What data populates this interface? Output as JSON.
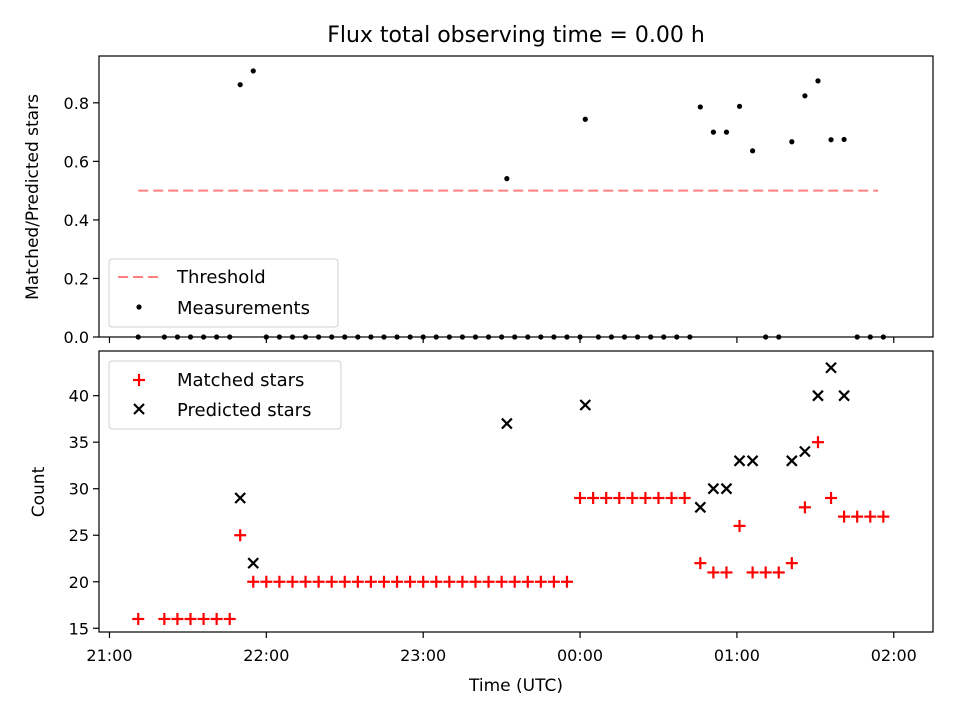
{
  "chart_data": [
    {
      "type": "scatter",
      "title": "Flux total observing time = 0.00 h",
      "xlabel": "",
      "ylabel": "Matched/Predicted stars",
      "xlim": [
        "20:56",
        "02:15"
      ],
      "ylim": [
        0,
        0.96
      ],
      "yticks": [
        0.0,
        0.2,
        0.4,
        0.6,
        0.8
      ],
      "ytick_labels": [
        "0.0",
        "0.2",
        "0.4",
        "0.6",
        "0.8"
      ],
      "grid": false,
      "legend_position": "lower-left",
      "threshold": {
        "name": "Threshold",
        "value": 0.5,
        "x_range": [
          "21:11",
          "01:54"
        ],
        "color": "#ff7f7f",
        "style": "dashed"
      },
      "series": [
        {
          "name": "Measurements",
          "color": "#000000",
          "points": [
            [
              "21:11",
              0
            ],
            [
              "21:21",
              0
            ],
            [
              "21:26",
              0
            ],
            [
              "21:31",
              0
            ],
            [
              "21:36",
              0
            ],
            [
              "21:41",
              0
            ],
            [
              "21:46",
              0
            ],
            [
              "21:50",
              0.862
            ],
            [
              "21:55",
              0.909
            ],
            [
              "22:00",
              0
            ],
            [
              "22:05",
              0
            ],
            [
              "22:10",
              0
            ],
            [
              "22:15",
              0
            ],
            [
              "22:20",
              0
            ],
            [
              "22:25",
              0
            ],
            [
              "22:30",
              0
            ],
            [
              "22:35",
              0
            ],
            [
              "22:40",
              0
            ],
            [
              "22:45",
              0
            ],
            [
              "22:50",
              0
            ],
            [
              "22:55",
              0
            ],
            [
              "23:00",
              0
            ],
            [
              "23:05",
              0
            ],
            [
              "23:10",
              0
            ],
            [
              "23:15",
              0
            ],
            [
              "23:20",
              0
            ],
            [
              "23:25",
              0
            ],
            [
              "23:30",
              0
            ],
            [
              "23:32",
              0.541
            ],
            [
              "23:35",
              0
            ],
            [
              "23:40",
              0
            ],
            [
              "23:45",
              0
            ],
            [
              "23:50",
              0
            ],
            [
              "23:55",
              0
            ],
            [
              "00:00",
              0
            ],
            [
              "00:02",
              0.744
            ],
            [
              "00:07",
              0
            ],
            [
              "00:12",
              0
            ],
            [
              "00:17",
              0
            ],
            [
              "00:22",
              0
            ],
            [
              "00:27",
              0
            ],
            [
              "00:32",
              0
            ],
            [
              "00:37",
              0
            ],
            [
              "00:42",
              0
            ],
            [
              "00:46",
              0.786
            ],
            [
              "00:51",
              0.7
            ],
            [
              "00:56",
              0.7
            ],
            [
              "01:01",
              0.788
            ],
            [
              "01:06",
              0.636
            ],
            [
              "01:11",
              0
            ],
            [
              "01:16",
              0
            ],
            [
              "01:21",
              0.667
            ],
            [
              "01:26",
              0.824
            ],
            [
              "01:31",
              0.875
            ],
            [
              "01:36",
              0.674
            ],
            [
              "01:41",
              0.675
            ],
            [
              "01:46",
              0
            ],
            [
              "01:51",
              0
            ],
            [
              "01:56",
              0
            ]
          ]
        }
      ]
    },
    {
      "type": "scatter",
      "title": "",
      "xlabel": "Time (UTC)",
      "ylabel": "Count",
      "xlim": [
        "20:56",
        "02:15"
      ],
      "ylim": [
        14.6,
        44.8
      ],
      "yticks": [
        15,
        20,
        25,
        30,
        35,
        40
      ],
      "ytick_labels": [
        "15",
        "20",
        "25",
        "30",
        "35",
        "40"
      ],
      "xticks": [
        "21:00",
        "22:00",
        "23:00",
        "00:00",
        "01:00",
        "02:00"
      ],
      "xtick_labels": [
        "21:00",
        "22:00",
        "23:00",
        "00:00",
        "01:00",
        "02:00"
      ],
      "grid": false,
      "legend_position": "upper-left",
      "series": [
        {
          "name": "Matched stars",
          "color": "#ff0000",
          "marker": "plus",
          "points": [
            [
              "21:11",
              16
            ],
            [
              "21:21",
              16
            ],
            [
              "21:26",
              16
            ],
            [
              "21:31",
              16
            ],
            [
              "21:36",
              16
            ],
            [
              "21:41",
              16
            ],
            [
              "21:46",
              16
            ],
            [
              "21:50",
              25
            ],
            [
              "21:55",
              20
            ],
            [
              "22:00",
              20
            ],
            [
              "22:05",
              20
            ],
            [
              "22:10",
              20
            ],
            [
              "22:15",
              20
            ],
            [
              "22:20",
              20
            ],
            [
              "22:25",
              20
            ],
            [
              "22:30",
              20
            ],
            [
              "22:35",
              20
            ],
            [
              "22:40",
              20
            ],
            [
              "22:45",
              20
            ],
            [
              "22:50",
              20
            ],
            [
              "22:55",
              20
            ],
            [
              "23:00",
              20
            ],
            [
              "23:05",
              20
            ],
            [
              "23:10",
              20
            ],
            [
              "23:15",
              20
            ],
            [
              "23:20",
              20
            ],
            [
              "23:25",
              20
            ],
            [
              "23:30",
              20
            ],
            [
              "23:35",
              20
            ],
            [
              "23:40",
              20
            ],
            [
              "23:45",
              20
            ],
            [
              "23:50",
              20
            ],
            [
              "23:55",
              20
            ],
            [
              "00:00",
              29
            ],
            [
              "00:05",
              29
            ],
            [
              "00:10",
              29
            ],
            [
              "00:15",
              29
            ],
            [
              "00:20",
              29
            ],
            [
              "00:25",
              29
            ],
            [
              "00:30",
              29
            ],
            [
              "00:35",
              29
            ],
            [
              "00:40",
              29
            ],
            [
              "00:46",
              22
            ],
            [
              "00:51",
              21
            ],
            [
              "00:56",
              21
            ],
            [
              "01:01",
              26
            ],
            [
              "01:06",
              21
            ],
            [
              "01:11",
              21
            ],
            [
              "01:16",
              21
            ],
            [
              "01:21",
              22
            ],
            [
              "01:26",
              28
            ],
            [
              "01:31",
              35
            ],
            [
              "01:36",
              29
            ],
            [
              "01:41",
              27
            ],
            [
              "01:46",
              27
            ],
            [
              "01:51",
              27
            ],
            [
              "01:56",
              27
            ]
          ]
        },
        {
          "name": "Predicted stars",
          "color": "#000000",
          "marker": "x",
          "points": [
            [
              "21:50",
              29
            ],
            [
              "21:55",
              22
            ],
            [
              "23:32",
              37
            ],
            [
              "00:02",
              39
            ],
            [
              "00:46",
              28
            ],
            [
              "00:51",
              30
            ],
            [
              "00:56",
              30
            ],
            [
              "01:01",
              33
            ],
            [
              "01:06",
              33
            ],
            [
              "01:21",
              33
            ],
            [
              "01:26",
              34
            ],
            [
              "01:31",
              40
            ],
            [
              "01:36",
              43
            ],
            [
              "01:41",
              40
            ]
          ]
        }
      ]
    }
  ]
}
